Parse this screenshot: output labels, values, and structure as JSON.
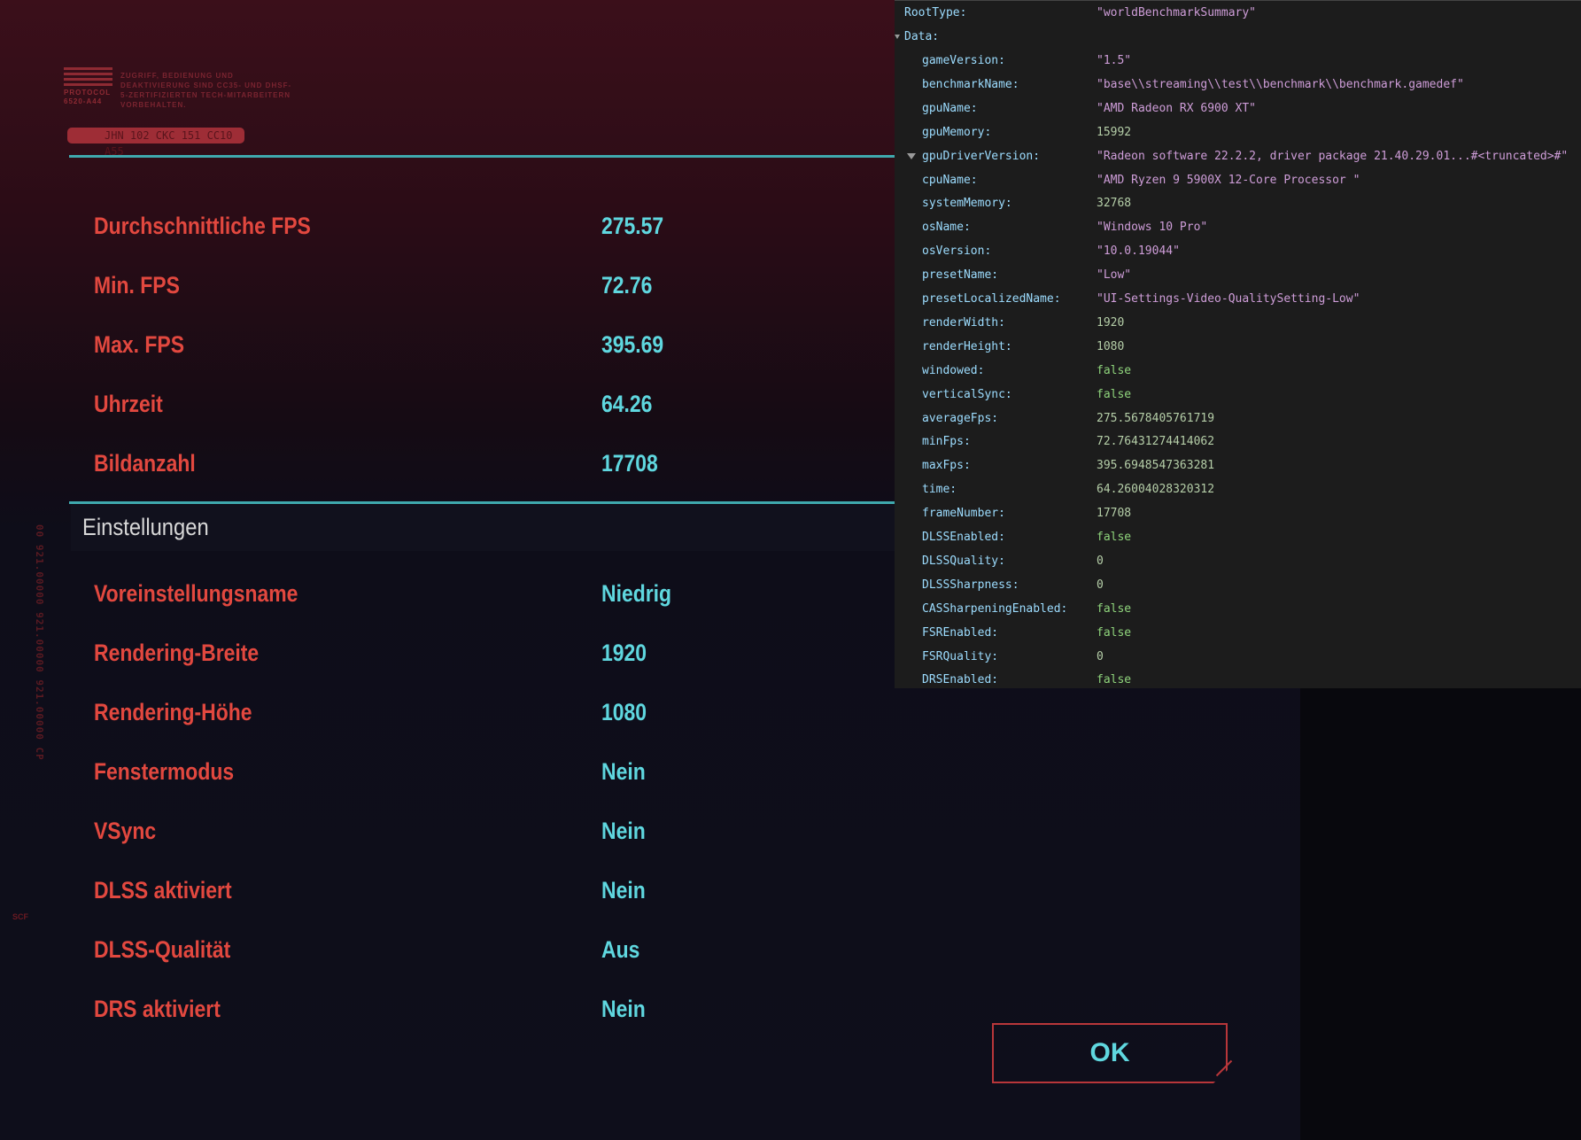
{
  "header": {
    "logo_text": "PROTOCOL 6520-A44",
    "legal_text": "ZUGRIFF, BEDIENUNG UND DEAKTIVIERUNG SIND CC35- UND DHSF-5-ZERTIFIZIERTEN TECH-MITARBEITERN VORBEHALTEN.",
    "serial": "JHN 102 CKC 151 CC10 A55"
  },
  "side_text": "00 921.00000 921.00000 921.00000 CP",
  "side_small": "SCF",
  "results": [
    {
      "label": "Durchschnittliche FPS",
      "value": "275.57"
    },
    {
      "label": "Min. FPS",
      "value": "72.76"
    },
    {
      "label": "Max. FPS",
      "value": "395.69"
    },
    {
      "label": "Uhrzeit",
      "value": "64.26"
    },
    {
      "label": "Bildanzahl",
      "value": "17708"
    }
  ],
  "settings": {
    "title": "Einstellungen",
    "rows": [
      {
        "label": "Voreinstellungsname",
        "value": "Niedrig"
      },
      {
        "label": "Rendering-Breite",
        "value": "1920"
      },
      {
        "label": "Rendering-Höhe",
        "value": "1080"
      },
      {
        "label": "Fenstermodus",
        "value": "Nein"
      },
      {
        "label": "VSync",
        "value": "Nein"
      },
      {
        "label": "DLSS aktiviert",
        "value": "Nein"
      },
      {
        "label": "DLSS-Qualität",
        "value": "Aus"
      },
      {
        "label": "DRS aktiviert",
        "value": "Nein"
      }
    ]
  },
  "ok_label": "OK",
  "json_viewer": {
    "root": {
      "key": "RootType:",
      "value": "\"worldBenchmarkSummary\""
    },
    "data_key": "Data:",
    "rows": [
      {
        "key": "gameVersion:",
        "value": "\"1.5\"",
        "type": "s"
      },
      {
        "key": "benchmarkName:",
        "value": "\"base\\\\streaming\\\\test\\\\benchmark\\\\benchmark.gamedef\"",
        "type": "s"
      },
      {
        "key": "gpuName:",
        "value": "\"AMD Radeon RX 6900 XT\"",
        "type": "s"
      },
      {
        "key": "gpuMemory:",
        "value": "15992",
        "type": "n"
      },
      {
        "key": "gpuDriverVersion:",
        "value": "\"Radeon software 22.2.2, driver package 21.40.29.01...#<truncated>#\"",
        "type": "s",
        "expandable": true
      },
      {
        "key": "cpuName:",
        "value": "\"AMD Ryzen 9 5900X 12-Core Processor            \"",
        "type": "s"
      },
      {
        "key": "systemMemory:",
        "value": "32768",
        "type": "n"
      },
      {
        "key": "osName:",
        "value": "\"Windows 10 Pro\"",
        "type": "s"
      },
      {
        "key": "osVersion:",
        "value": "\"10.0.19044\"",
        "type": "s"
      },
      {
        "key": "presetName:",
        "value": "\"Low\"",
        "type": "s"
      },
      {
        "key": "presetLocalizedName:",
        "value": "\"UI-Settings-Video-QualitySetting-Low\"",
        "type": "s"
      },
      {
        "key": "renderWidth:",
        "value": "1920",
        "type": "n"
      },
      {
        "key": "renderHeight:",
        "value": "1080",
        "type": "n"
      },
      {
        "key": "windowed:",
        "value": "false",
        "type": "b"
      },
      {
        "key": "verticalSync:",
        "value": "false",
        "type": "b"
      },
      {
        "key": "averageFps:",
        "value": "275.5678405761719",
        "type": "n"
      },
      {
        "key": "minFps:",
        "value": "72.76431274414062",
        "type": "n"
      },
      {
        "key": "maxFps:",
        "value": "395.6948547363281",
        "type": "n"
      },
      {
        "key": "time:",
        "value": "64.26004028320312",
        "type": "n"
      },
      {
        "key": "frameNumber:",
        "value": "17708",
        "type": "n"
      },
      {
        "key": "DLSSEnabled:",
        "value": "false",
        "type": "b"
      },
      {
        "key": "DLSSQuality:",
        "value": "0",
        "type": "n"
      },
      {
        "key": "DLSSSharpness:",
        "value": "0",
        "type": "n"
      },
      {
        "key": "CASSharpeningEnabled:",
        "value": "false",
        "type": "b"
      },
      {
        "key": "FSREnabled:",
        "value": "false",
        "type": "b"
      },
      {
        "key": "FSRQuality:",
        "value": "0",
        "type": "n"
      },
      {
        "key": "DRSEnabled:",
        "value": "false",
        "type": "b"
      }
    ]
  },
  "colors": {
    "label": "#e2483f",
    "value": "#5fd7df",
    "accent_line": "#3fa9ae",
    "button_border": "#b8363a"
  }
}
